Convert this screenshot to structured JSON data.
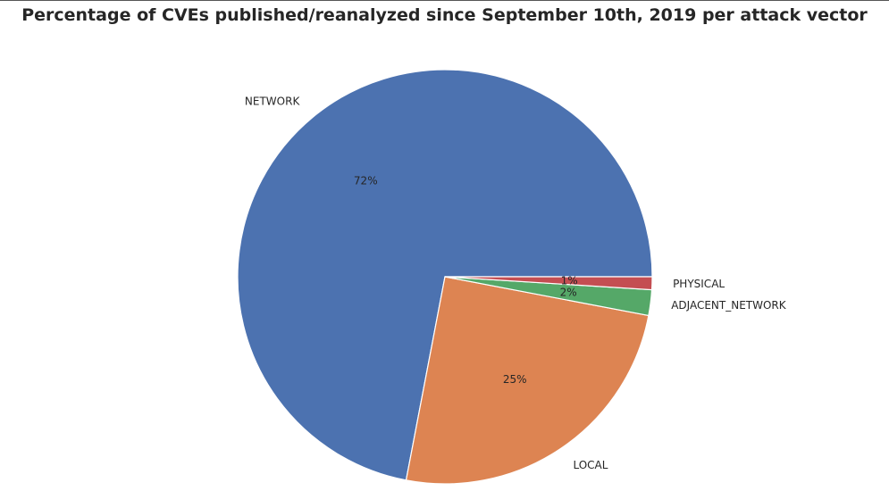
{
  "chart_data": {
    "type": "pie",
    "title": "Percentage of CVEs published/reanalyzed since September 10th, 2019 per attack vector",
    "categories": [
      "NETWORK",
      "LOCAL",
      "ADJACENT_NETWORK",
      "PHYSICAL"
    ],
    "values": [
      72,
      25,
      2,
      1
    ],
    "value_labels": [
      "72%",
      "25%",
      "2%",
      "1%"
    ],
    "colors": [
      "#4c72b0",
      "#dd8452",
      "#55a868",
      "#c44e52"
    ],
    "start": "east (3 o'clock)",
    "direction": "counterclockwise",
    "legend": "none",
    "grid": false
  }
}
